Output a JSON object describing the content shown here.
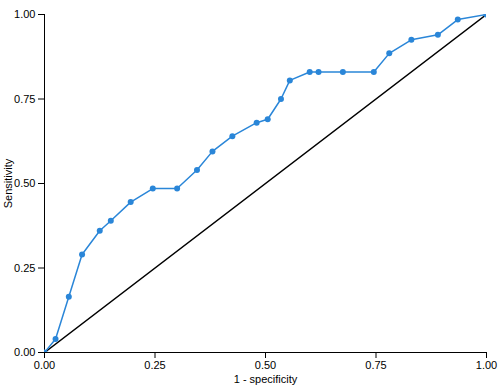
{
  "chart_data": {
    "type": "line",
    "x_label": "1 - specificity",
    "y_label": "Sensitivity",
    "xlim": [
      0,
      1
    ],
    "ylim": [
      0,
      1
    ],
    "xticks": [
      {
        "value": 0,
        "label": "0.00"
      },
      {
        "value": 0.25,
        "label": "0.25"
      },
      {
        "value": 0.5,
        "label": "0.50"
      },
      {
        "value": 0.75,
        "label": "0.75"
      },
      {
        "value": 1,
        "label": "1.00"
      }
    ],
    "yticks": [
      {
        "value": 0,
        "label": "0.00"
      },
      {
        "value": 0.25,
        "label": "0.25"
      },
      {
        "value": 0.5,
        "label": "0.50"
      },
      {
        "value": 0.75,
        "label": "0.75"
      },
      {
        "value": 1,
        "label": "1.00"
      }
    ],
    "grid": false,
    "series": [
      {
        "color": "#2a86d8",
        "marker": "circle",
        "line_style": "solid",
        "x": [
          0,
          0.025,
          0.055,
          0.085,
          0.125,
          0.15,
          0.195,
          0.245,
          0.3,
          0.345,
          0.38,
          0.425,
          0.48,
          0.505,
          0.535,
          0.555,
          0.6,
          0.62,
          0.675,
          0.745,
          0.78,
          0.83,
          0.89,
          0.935,
          1
        ],
        "values": [
          0,
          0.04,
          0.165,
          0.29,
          0.36,
          0.39,
          0.445,
          0.485,
          0.485,
          0.54,
          0.595,
          0.64,
          0.68,
          0.69,
          0.75,
          0.805,
          0.83,
          0.83,
          0.83,
          0.83,
          0.885,
          0.925,
          0.94,
          0.985,
          1
        ]
      },
      {
        "color": "#000000",
        "marker": "none",
        "line_style": "solid",
        "x": [
          0,
          1
        ],
        "values": [
          0,
          1
        ]
      }
    ]
  }
}
